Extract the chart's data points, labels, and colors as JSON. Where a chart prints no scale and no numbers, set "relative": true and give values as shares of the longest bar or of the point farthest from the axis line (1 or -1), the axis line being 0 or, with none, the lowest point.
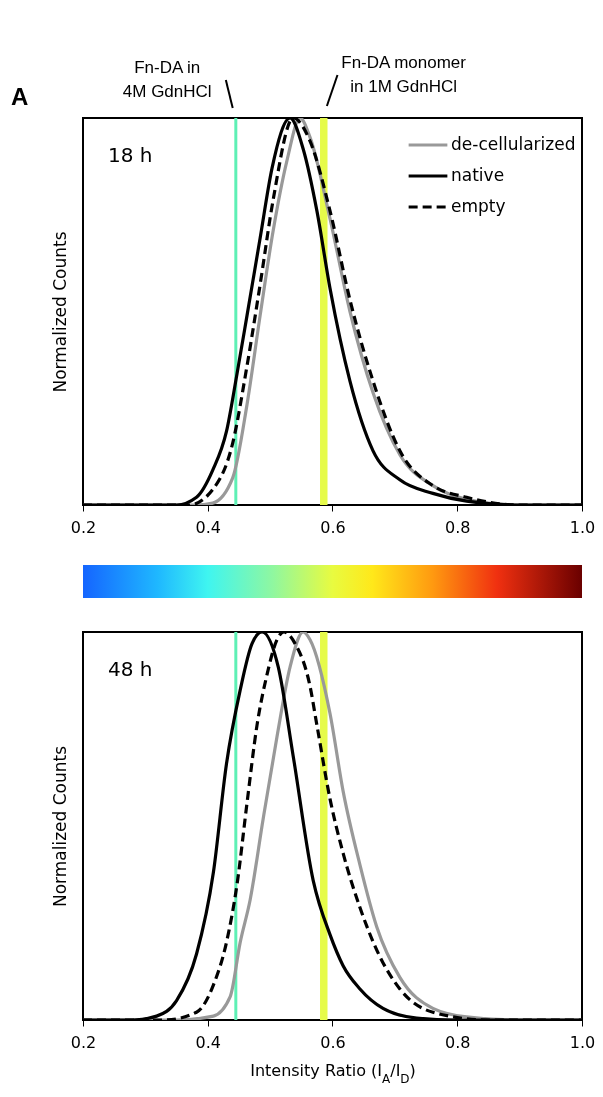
{
  "chart_data": [
    {
      "type": "line",
      "relative": true,
      "ylabel": "Normalized Counts",
      "legend": "top right",
      "xlim": [
        0.2,
        1.0
      ],
      "xticks": [
        0.2,
        0.4,
        0.6,
        0.8,
        {
          "value": 1.0,
          "label": "1.0"
        }
      ],
      "annotations": [
        "A",
        "18 h"
      ],
      "ref_lines": [
        {
          "axis": "x",
          "value": 0.445,
          "label": "Fn-DA in\n4M GdnHCl",
          "color": "#5ef0b5"
        }
      ],
      "bands": [
        {
          "axis": "x",
          "from": 0.58,
          "to": 0.592,
          "label": "Fn-DA monomer\nin 1M GdnHCl",
          "color": "#e6fb4a"
        }
      ],
      "series": [
        {
          "name": "de-cellularized",
          "color": "#999999",
          "line_style": "solid",
          "x": [
            0.2,
            0.38,
            0.408,
            0.44,
            0.463,
            0.484,
            0.505,
            0.527,
            0.548,
            0.564,
            0.596,
            0.628,
            0.665,
            0.708,
            0.761,
            0.815,
            0.9,
            1.0
          ],
          "values": [
            0,
            0,
            0.005,
            0.07,
            0.26,
            0.49,
            0.71,
            0.89,
            1.0,
            0.95,
            0.74,
            0.5,
            0.29,
            0.13,
            0.05,
            0.015,
            0,
            0
          ]
        },
        {
          "name": "native",
          "color": "#000000",
          "line_style": "solid",
          "x": [
            0.2,
            0.35,
            0.382,
            0.408,
            0.43,
            0.447,
            0.463,
            0.484,
            0.503,
            0.532,
            0.553,
            0.575,
            0.596,
            0.628,
            0.665,
            0.708,
            0.761,
            0.815,
            0.9,
            1.0
          ],
          "values": [
            0,
            0,
            0.02,
            0.09,
            0.19,
            0.34,
            0.49,
            0.69,
            0.87,
            1.0,
            0.92,
            0.76,
            0.56,
            0.32,
            0.14,
            0.065,
            0.03,
            0.01,
            0,
            0
          ]
        },
        {
          "name": "empty",
          "color": "#000000",
          "line_style": "dashed",
          "x": [
            0.2,
            0.37,
            0.408,
            0.44,
            0.463,
            0.484,
            0.505,
            0.537,
            0.564,
            0.596,
            0.628,
            0.665,
            0.708,
            0.761,
            0.815,
            0.9,
            1.0
          ],
          "values": [
            0,
            0,
            0.04,
            0.16,
            0.36,
            0.57,
            0.79,
            1.0,
            0.94,
            0.76,
            0.53,
            0.32,
            0.14,
            0.05,
            0.02,
            0,
            0
          ]
        }
      ]
    },
    {
      "type": "line",
      "relative": true,
      "ylabel": "Normalized Counts",
      "xlabel": "Intensity Ratio (I$_{A}$/I$_{D}$)",
      "xlim": [
        0.2,
        1.0
      ],
      "xticks": [
        0.2,
        0.4,
        0.6,
        0.8,
        {
          "value": 1.0,
          "label": "1.0"
        }
      ],
      "annotations": [
        "48 h"
      ],
      "ref_lines": [
        {
          "axis": "x",
          "value": 0.445,
          "color": "#5ef0b5"
        }
      ],
      "bands": [
        {
          "axis": "x",
          "from": 0.58,
          "to": 0.592,
          "color": "#e6fb4a"
        }
      ],
      "series": [
        {
          "color": "#999999",
          "line_style": "solid",
          "x": [
            0.2,
            0.35,
            0.409,
            0.436,
            0.452,
            0.468,
            0.489,
            0.511,
            0.532,
            0.553,
            0.564,
            0.596,
            0.617,
            0.644,
            0.671,
            0.708,
            0.761,
            0.815,
            0.9,
            1.0
          ],
          "values": [
            0,
            0,
            0.01,
            0.06,
            0.2,
            0.31,
            0.52,
            0.73,
            0.91,
            1.0,
            0.98,
            0.79,
            0.59,
            0.4,
            0.24,
            0.11,
            0.03,
            0.008,
            0,
            0
          ]
        },
        {
          "color": "#000000",
          "line_style": "solid",
          "x": [
            0.2,
            0.28,
            0.318,
            0.35,
            0.382,
            0.409,
            0.43,
            0.452,
            0.471,
            0.487,
            0.513,
            0.537,
            0.569,
            0.596,
            0.617,
            0.644,
            0.681,
            0.735,
            0.8,
            1.0
          ],
          "values": [
            0,
            0,
            0.01,
            0.05,
            0.17,
            0.38,
            0.66,
            0.85,
            0.97,
            1.0,
            0.91,
            0.68,
            0.36,
            0.22,
            0.14,
            0.08,
            0.03,
            0.005,
            0,
            0
          ]
        },
        {
          "color": "#000000",
          "line_style": "dashed",
          "x": [
            0.2,
            0.33,
            0.382,
            0.409,
            0.43,
            0.447,
            0.463,
            0.479,
            0.495,
            0.511,
            0.522,
            0.54,
            0.564,
            0.575,
            0.596,
            0.617,
            0.644,
            0.671,
            0.708,
            0.761,
            0.85,
            1.0
          ],
          "values": [
            0,
            0,
            0.02,
            0.09,
            0.2,
            0.35,
            0.56,
            0.76,
            0.89,
            0.98,
            1.0,
            0.97,
            0.86,
            0.76,
            0.57,
            0.43,
            0.29,
            0.18,
            0.08,
            0.02,
            0,
            0
          ]
        }
      ]
    }
  ]
}
